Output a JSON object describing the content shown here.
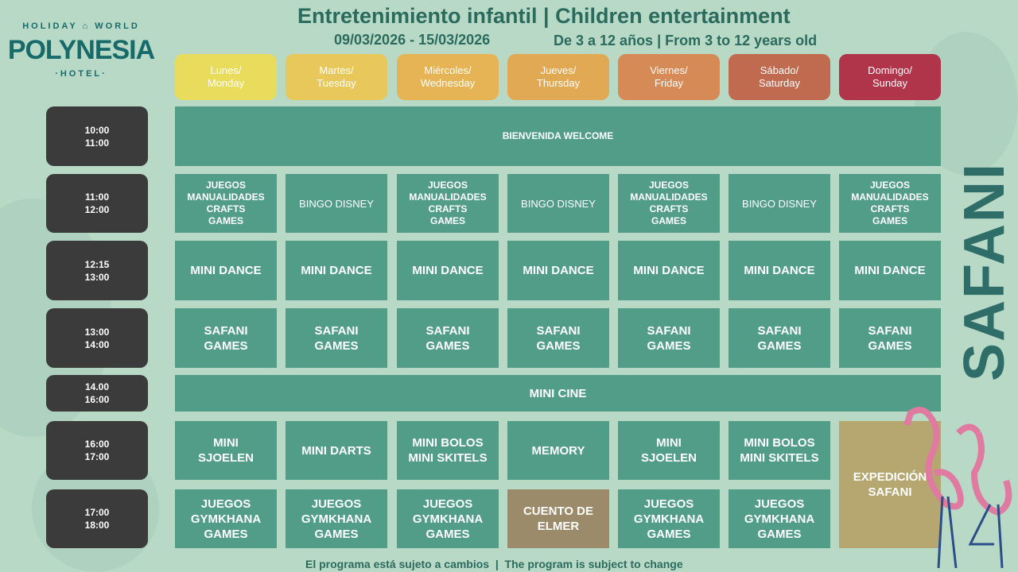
{
  "logo": {
    "top": "HOLIDAY ⌂ WORLD",
    "name": "POLYNESIA",
    "sub": "·HOTEL·"
  },
  "header": {
    "title": "Entretenimiento infantil | Children entertainment",
    "dates": "09/03/2026 - 15/03/2026",
    "ages": "De 3 a 12 años | From 3 to 12 years old"
  },
  "days": [
    {
      "label": "Lunes/\nMonday",
      "color": "#e9db5c"
    },
    {
      "label": "Martes/\nTuesday",
      "color": "#e8c85a"
    },
    {
      "label": "Miércoles/\nWednesday",
      "color": "#e6b355"
    },
    {
      "label": "Jueves/\nThursday",
      "color": "#e2a955"
    },
    {
      "label": "Viernes/\nFriday",
      "color": "#d68a55"
    },
    {
      "label": "Sábado/\nSaturday",
      "color": "#c06a50"
    },
    {
      "label": "Domingo/\nSunday",
      "color": "#b0344a"
    }
  ],
  "times": [
    "10:00\n11:00",
    "11:00\n12:00",
    "12:15\n13:00",
    "13:00\n14:00",
    "14.00\n16:00",
    "16:00\n17:00",
    "17:00\n18:00"
  ],
  "rows": [
    [
      {
        "text": "BIENVENIDA WELCOME",
        "span": 7,
        "style": "small"
      }
    ],
    [
      {
        "text": "JUEGOS\nMANUALIDADES\nCRAFTS\nGAMES",
        "style": "small"
      },
      {
        "text": "BINGO DISNEY",
        "style": "plain"
      },
      {
        "text": "JUEGOS\nMANUALIDADES\nCRAFTS\nGAMES",
        "style": "small"
      },
      {
        "text": "BINGO DISNEY",
        "style": "plain"
      },
      {
        "text": "JUEGOS\nMANUALIDADES\nCRAFTS\nGAMES",
        "style": "small"
      },
      {
        "text": "BINGO DISNEY",
        "style": "plain"
      },
      {
        "text": "JUEGOS\nMANUALIDADES\nCRAFTS\nGAMES",
        "style": "small"
      }
    ],
    [
      {
        "text": "MINI DANCE"
      },
      {
        "text": "MINI DANCE"
      },
      {
        "text": "MINI DANCE"
      },
      {
        "text": "MINI DANCE"
      },
      {
        "text": "MINI DANCE"
      },
      {
        "text": "MINI DANCE"
      },
      {
        "text": "MINI DANCE"
      }
    ],
    [
      {
        "text": "SAFANI\nGAMES"
      },
      {
        "text": "SAFANI\nGAMES"
      },
      {
        "text": "SAFANI\nGAMES"
      },
      {
        "text": "SAFANI\nGAMES"
      },
      {
        "text": "SAFANI\nGAMES"
      },
      {
        "text": "SAFANI\nGAMES"
      },
      {
        "text": "SAFANI\nGAMES"
      }
    ],
    [
      {
        "text": "MINI CINE",
        "span": 7
      }
    ],
    [
      {
        "text": "MINI\nSJOELEN"
      },
      {
        "text": "MINI DARTS"
      },
      {
        "text": "MINI BOLOS\nMINI SKITELS"
      },
      {
        "text": "MEMORY"
      },
      {
        "text": "MINI\nSJOELEN"
      },
      {
        "text": "MINI BOLOS\nMINI SKITELS"
      },
      {
        "text": "EXPEDICIÓN\nSAFANI",
        "rowspan": 2,
        "color": "#b5a76f"
      }
    ],
    [
      {
        "text": "JUEGOS\nGYMKHANA\nGAMES"
      },
      {
        "text": "JUEGOS\nGYMKHANA\nGAMES"
      },
      {
        "text": "JUEGOS\nGYMKHANA\nGAMES"
      },
      {
        "text": "CUENTO DE\nELMER",
        "color": "#9c8b6b"
      },
      {
        "text": "JUEGOS\nGYMKHANA\nGAMES"
      },
      {
        "text": "JUEGOS\nGYMKHANA\nGAMES"
      }
    ]
  ],
  "side_label": "SAFANI",
  "footer": "El programa está sujeto a cambios  |  The program is subject to change"
}
